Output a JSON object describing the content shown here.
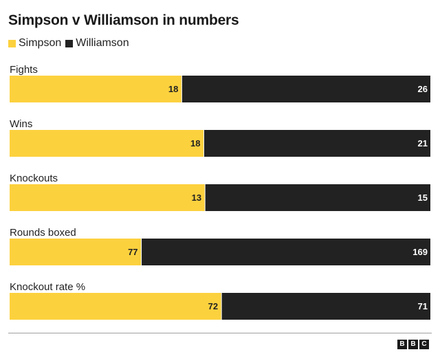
{
  "title": "Simpson v Williamson in numbers",
  "legend": [
    {
      "label": "Simpson",
      "color": "#fcd13e"
    },
    {
      "label": "Williamson",
      "color": "#222222"
    }
  ],
  "logo": {
    "letters": [
      "B",
      "B",
      "C"
    ]
  },
  "chart_data": {
    "type": "bar",
    "stacked": true,
    "normalized": true,
    "orientation": "horizontal",
    "title": "Simpson v Williamson in numbers",
    "legend_position": "top-left",
    "grid": false,
    "categories": [
      "Fights",
      "Wins",
      "Knockouts",
      "Rounds boxed",
      "Knockout rate %"
    ],
    "series": [
      {
        "name": "Simpson",
        "color": "#fcd13e",
        "values": [
          18,
          18,
          13,
          77,
          72
        ]
      },
      {
        "name": "Williamson",
        "color": "#222222",
        "values": [
          26,
          21,
          15,
          169,
          71
        ]
      }
    ]
  }
}
